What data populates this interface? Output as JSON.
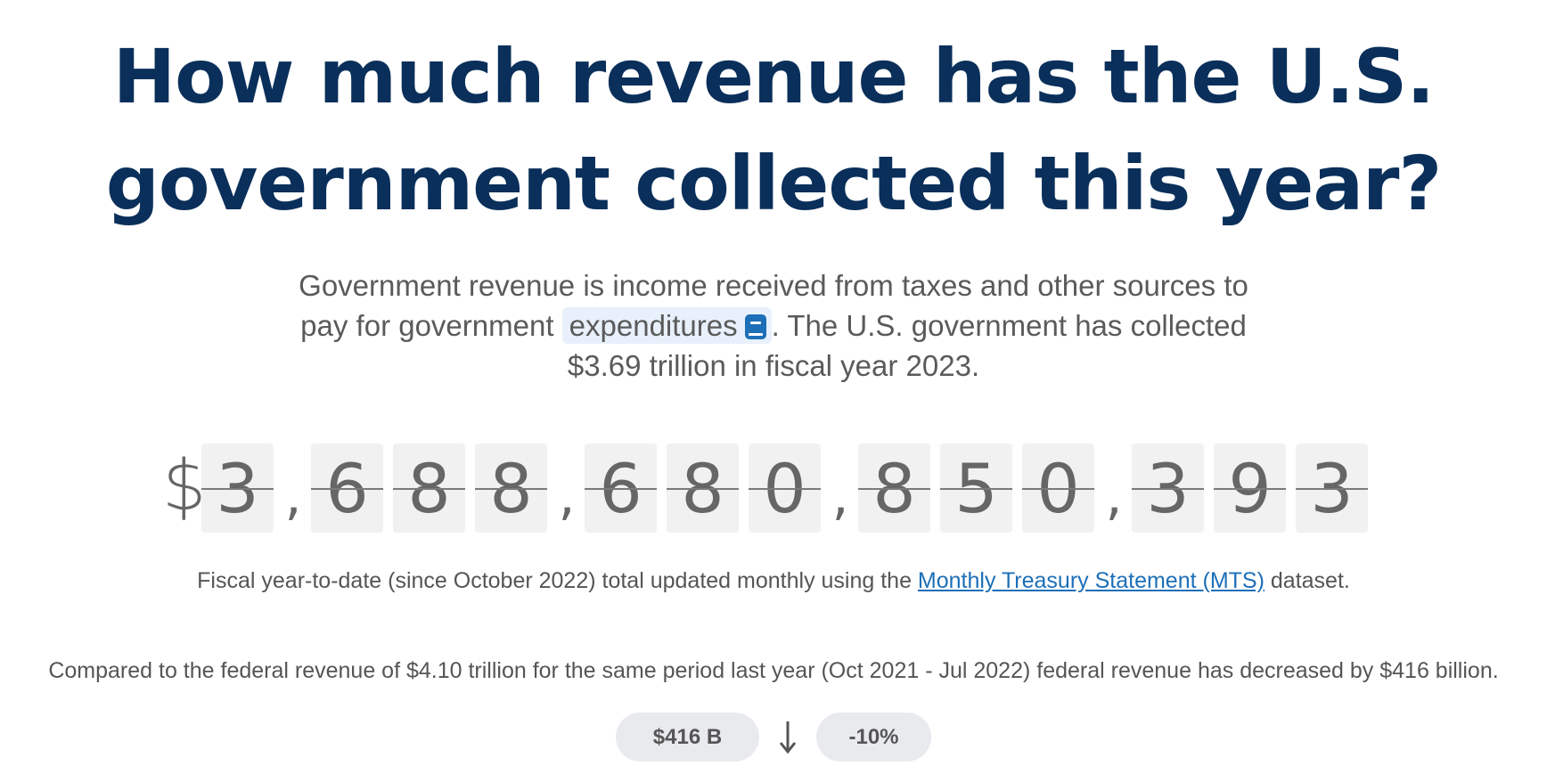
{
  "page": {
    "title": "How much revenue has the U.S. government collected this year?"
  },
  "intro": {
    "text_before": "Government revenue is income received from taxes and other sources to pay for government ",
    "glossary_term": "expenditures",
    "glossary_icon": "glossary-book-icon",
    "text_after": ". The U.S. government has collected $3.69 trillion in fiscal year 2023."
  },
  "counter": {
    "currency": "$",
    "groups": [
      [
        "3"
      ],
      [
        "6",
        "8",
        "8"
      ],
      [
        "6",
        "8",
        "0"
      ],
      [
        "8",
        "5",
        "0"
      ],
      [
        "3",
        "9",
        "3"
      ]
    ],
    "separator": ","
  },
  "footnote": {
    "text_before": "Fiscal year-to-date (since October 2022) total updated monthly using the ",
    "link_text": "Monthly Treasury Statement (MTS)",
    "text_after": " dataset."
  },
  "comparison": {
    "text": "Compared to the federal revenue of $4.10 trillion for the same period last year (Oct 2021 - Jul 2022) federal revenue has decreased by $416 billion."
  },
  "change": {
    "amount": "$416 B",
    "direction_icon": "arrow-down-icon",
    "percent": "-10%"
  },
  "colors": {
    "title": "#0a2f5a",
    "link": "#1d6fb8",
    "glossary_bg": "#e8f1fb",
    "digit_bg": "#f1f1f1",
    "pill_bg": "#e8eaee"
  }
}
